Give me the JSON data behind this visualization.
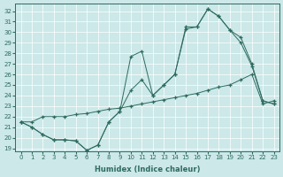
{
  "xlabel": "Humidex (Indice chaleur)",
  "background_color": "#cce8e8",
  "line_color": "#2e6b60",
  "xlim": [
    -0.5,
    23.5
  ],
  "ylim": [
    18.7,
    32.7
  ],
  "yticks": [
    19,
    20,
    21,
    22,
    23,
    24,
    25,
    26,
    27,
    28,
    29,
    30,
    31,
    32
  ],
  "xticks": [
    0,
    1,
    2,
    3,
    4,
    5,
    6,
    7,
    8,
    9,
    10,
    11,
    12,
    13,
    14,
    15,
    16,
    17,
    18,
    19,
    20,
    21,
    22,
    23
  ],
  "line1_x": [
    0,
    1,
    2,
    3,
    4,
    5,
    6,
    7,
    8,
    9,
    10,
    11,
    12,
    13,
    14,
    15,
    16,
    17,
    18,
    19,
    20,
    21,
    22,
    23
  ],
  "line1_y": [
    21.5,
    21.5,
    22.0,
    22.0,
    22.0,
    22.2,
    22.3,
    22.5,
    22.7,
    22.8,
    23.0,
    23.2,
    23.4,
    23.6,
    23.8,
    24.0,
    24.2,
    24.5,
    24.8,
    25.0,
    25.5,
    26.0,
    23.2,
    23.5
  ],
  "line2_x": [
    0,
    1,
    2,
    3,
    4,
    5,
    6,
    7,
    8,
    9,
    10,
    11,
    12,
    13,
    14,
    15,
    16,
    17,
    18,
    19,
    20,
    21,
    22,
    23
  ],
  "line2_y": [
    21.5,
    21.0,
    20.3,
    19.8,
    19.8,
    19.7,
    18.8,
    19.3,
    21.5,
    22.5,
    24.5,
    25.5,
    24.0,
    25.0,
    26.0,
    30.5,
    30.5,
    32.2,
    31.5,
    30.2,
    29.5,
    27.0,
    23.5,
    23.2
  ],
  "line3_x": [
    0,
    1,
    2,
    3,
    4,
    5,
    6,
    7,
    8,
    9,
    10,
    11,
    12,
    13,
    14,
    15,
    16,
    17,
    18,
    19,
    20,
    21,
    22,
    23
  ],
  "line3_y": [
    21.5,
    21.0,
    20.3,
    19.8,
    19.8,
    19.7,
    18.8,
    19.3,
    21.5,
    22.5,
    27.7,
    28.2,
    24.0,
    25.0,
    26.0,
    30.3,
    30.5,
    32.2,
    31.5,
    30.2,
    29.0,
    26.8,
    23.5,
    23.2
  ]
}
